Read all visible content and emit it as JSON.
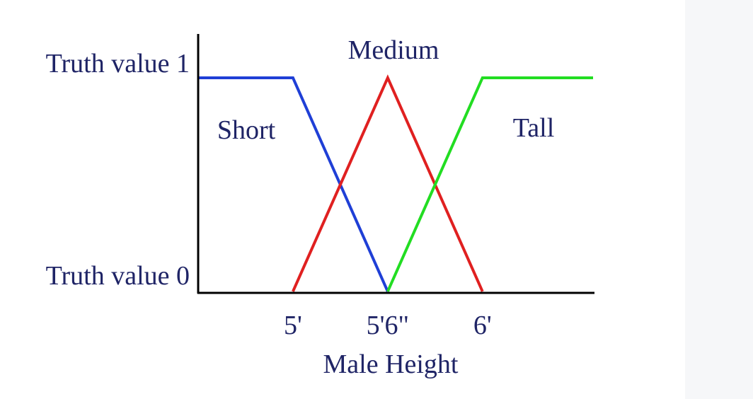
{
  "chart_data": {
    "type": "line",
    "xlabel": "Male Height",
    "x_ticks": [
      {
        "value": 60,
        "label": "5'"
      },
      {
        "value": 66,
        "label": "5'6\""
      },
      {
        "value": 72,
        "label": "6'"
      }
    ],
    "y_ticks": [
      {
        "value": 0,
        "label": "Truth value 0"
      },
      {
        "value": 1,
        "label": "Truth value 1"
      }
    ],
    "xlim": [
      54,
      79
    ],
    "ylim": [
      0,
      1
    ],
    "grid": false,
    "series": [
      {
        "name": "Short",
        "color": "#1f3fd6",
        "x": [
          54,
          60,
          66
        ],
        "y": [
          1,
          1,
          0
        ]
      },
      {
        "name": "Medium",
        "color": "#e02020",
        "x": [
          60,
          66,
          72
        ],
        "y": [
          0,
          1,
          0
        ]
      },
      {
        "name": "Tall",
        "color": "#22dd22",
        "x": [
          66,
          72,
          79
        ],
        "y": [
          0,
          1,
          1
        ]
      }
    ]
  }
}
